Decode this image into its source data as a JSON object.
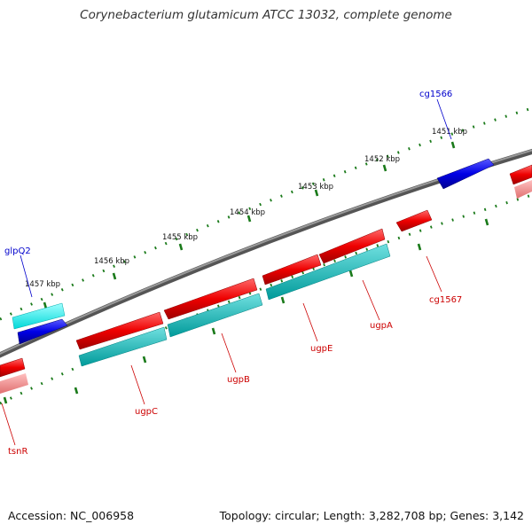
{
  "title": "Corynebacterium glutamicum ATCC 13032, complete genome",
  "footer": {
    "accession": "Accession: NC_006958",
    "topology": "Topology: circular; Length: 3,282,708 bp; Genes: 3,142"
  },
  "ticks": [
    "1451 kbp",
    "1452 kbp",
    "1453 kbp",
    "1454 kbp",
    "1455 kbp",
    "1456 kbp",
    "1457 kbp"
  ],
  "genes": {
    "cg1566": "cg1566",
    "glpQ2": "glpQ2",
    "cg1567": "cg1567",
    "ugpA": "ugpA",
    "ugpE": "ugpE",
    "ugpB": "ugpB",
    "ugpC": "ugpC",
    "tsnR": "tsnR"
  },
  "colors": {
    "forward_cds": "#0000e6",
    "forward_rna": "#00e5e5",
    "reverse_cds": "#ee0000",
    "reverse_rna": "#00b3b3",
    "backbone": "#777777",
    "tick_marks": "#1a7a1a",
    "label_blue": "#0000cc",
    "label_red": "#cc0000"
  }
}
